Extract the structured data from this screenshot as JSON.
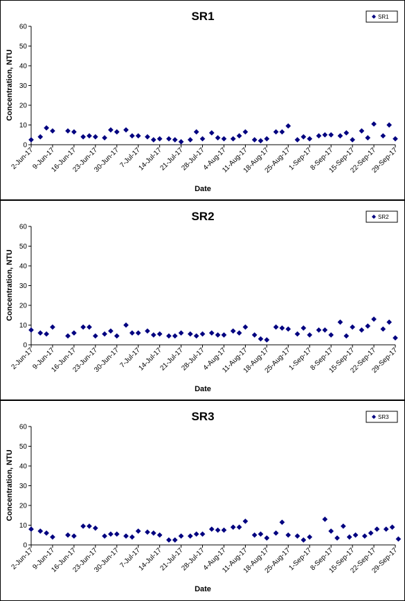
{
  "chart_data": [
    {
      "type": "scatter",
      "title": "SR1",
      "xlabel": "Date",
      "ylabel": "Concentration, NTU",
      "ylim": [
        0,
        60
      ],
      "yticks": [
        "0",
        "10",
        "20",
        "30",
        "40",
        "50",
        "60"
      ],
      "xlim": [
        "2017-06-02",
        "2017-09-29"
      ],
      "xticks": [
        "2-Jun-17",
        "9-Jun-17",
        "16-Jun-17",
        "23-Jun-17",
        "30-Jun-17",
        "7-Jul-17",
        "14-Jul-17",
        "21-Jul-17",
        "28-Jul-17",
        "4-Aug-17",
        "11-Aug-17",
        "18-Aug-17",
        "25-Aug-17",
        "1-Sep-17",
        "8-Sep-17",
        "15-Sep-17",
        "22-Sep-17",
        "29-Sep-17"
      ],
      "legend": "top-right",
      "grid": false,
      "marker_color": "#000080",
      "series": [
        {
          "name": "SR1",
          "points": [
            [
              "2017-06-02",
              2.5
            ],
            [
              "2017-06-05",
              4.0
            ],
            [
              "2017-06-07",
              8.5
            ],
            [
              "2017-06-09",
              7.0
            ],
            [
              "2017-06-14",
              7.0
            ],
            [
              "2017-06-16",
              6.5
            ],
            [
              "2017-06-19",
              4.0
            ],
            [
              "2017-06-21",
              4.5
            ],
            [
              "2017-06-23",
              4.0
            ],
            [
              "2017-06-26",
              3.5
            ],
            [
              "2017-06-28",
              7.5
            ],
            [
              "2017-06-30",
              6.5
            ],
            [
              "2017-07-03",
              7.5
            ],
            [
              "2017-07-05",
              4.5
            ],
            [
              "2017-07-07",
              4.5
            ],
            [
              "2017-07-10",
              4.0
            ],
            [
              "2017-07-12",
              2.5
            ],
            [
              "2017-07-14",
              3.0
            ],
            [
              "2017-07-17",
              3.0
            ],
            [
              "2017-07-19",
              2.5
            ],
            [
              "2017-07-21",
              1.5
            ],
            [
              "2017-07-24",
              2.5
            ],
            [
              "2017-07-26",
              6.5
            ],
            [
              "2017-07-28",
              3.0
            ],
            [
              "2017-07-31",
              6.0
            ],
            [
              "2017-08-02",
              3.5
            ],
            [
              "2017-08-04",
              3.0
            ],
            [
              "2017-08-07",
              3.0
            ],
            [
              "2017-08-09",
              4.5
            ],
            [
              "2017-08-11",
              6.5
            ],
            [
              "2017-08-14",
              2.5
            ],
            [
              "2017-08-16",
              2.0
            ],
            [
              "2017-08-18",
              3.0
            ],
            [
              "2017-08-21",
              6.5
            ],
            [
              "2017-08-23",
              6.5
            ],
            [
              "2017-08-25",
              9.5
            ],
            [
              "2017-08-28",
              2.5
            ],
            [
              "2017-08-30",
              4.0
            ],
            [
              "2017-09-01",
              3.0
            ],
            [
              "2017-09-04",
              4.5
            ],
            [
              "2017-09-06",
              5.0
            ],
            [
              "2017-09-08",
              5.0
            ],
            [
              "2017-09-11",
              4.5
            ],
            [
              "2017-09-13",
              6.0
            ],
            [
              "2017-09-15",
              2.5
            ],
            [
              "2017-09-18",
              7.0
            ],
            [
              "2017-09-20",
              3.5
            ],
            [
              "2017-09-22",
              10.5
            ],
            [
              "2017-09-25",
              4.5
            ],
            [
              "2017-09-27",
              10.0
            ],
            [
              "2017-09-29",
              3.0
            ]
          ]
        }
      ]
    },
    {
      "type": "scatter",
      "title": "SR2",
      "xlabel": "Date",
      "ylabel": "Concentration, NTU",
      "ylim": [
        0,
        60
      ],
      "yticks": [
        "0",
        "10",
        "20",
        "30",
        "40",
        "50",
        "60"
      ],
      "xlim": [
        "2017-06-02",
        "2017-09-29"
      ],
      "xticks": [
        "2-Jun-17",
        "9-Jun-17",
        "16-Jun-17",
        "23-Jun-17",
        "30-Jun-17",
        "7-Jul-17",
        "14-Jul-17",
        "21-Jul-17",
        "28-Jul-17",
        "4-Aug-17",
        "11-Aug-17",
        "18-Aug-17",
        "25-Aug-17",
        "1-Sep-17",
        "8-Sep-17",
        "15-Sep-17",
        "22-Sep-17",
        "29-Sep-17"
      ],
      "legend": "top-right",
      "grid": false,
      "marker_color": "#000080",
      "series": [
        {
          "name": "SR2",
          "points": [
            [
              "2017-06-02",
              7.5
            ],
            [
              "2017-06-05",
              6.0
            ],
            [
              "2017-06-07",
              5.5
            ],
            [
              "2017-06-09",
              9.0
            ],
            [
              "2017-06-14",
              4.5
            ],
            [
              "2017-06-16",
              6.0
            ],
            [
              "2017-06-19",
              9.0
            ],
            [
              "2017-06-21",
              9.0
            ],
            [
              "2017-06-23",
              4.5
            ],
            [
              "2017-06-26",
              5.5
            ],
            [
              "2017-06-28",
              7.0
            ],
            [
              "2017-06-30",
              4.5
            ],
            [
              "2017-07-03",
              10.0
            ],
            [
              "2017-07-05",
              6.0
            ],
            [
              "2017-07-07",
              6.0
            ],
            [
              "2017-07-10",
              7.0
            ],
            [
              "2017-07-12",
              5.0
            ],
            [
              "2017-07-14",
              5.5
            ],
            [
              "2017-07-17",
              4.5
            ],
            [
              "2017-07-19",
              4.5
            ],
            [
              "2017-07-21",
              6.0
            ],
            [
              "2017-07-24",
              5.5
            ],
            [
              "2017-07-26",
              4.5
            ],
            [
              "2017-07-28",
              5.5
            ],
            [
              "2017-07-31",
              6.0
            ],
            [
              "2017-08-02",
              5.0
            ],
            [
              "2017-08-04",
              5.0
            ],
            [
              "2017-08-07",
              7.0
            ],
            [
              "2017-08-09",
              6.0
            ],
            [
              "2017-08-11",
              9.0
            ],
            [
              "2017-08-14",
              5.0
            ],
            [
              "2017-08-16",
              3.0
            ],
            [
              "2017-08-18",
              2.5
            ],
            [
              "2017-08-21",
              9.0
            ],
            [
              "2017-08-23",
              8.5
            ],
            [
              "2017-08-25",
              8.0
            ],
            [
              "2017-08-28",
              5.5
            ],
            [
              "2017-08-30",
              8.5
            ],
            [
              "2017-09-01",
              5.0
            ],
            [
              "2017-09-04",
              7.5
            ],
            [
              "2017-09-06",
              7.5
            ],
            [
              "2017-09-08",
              5.0
            ],
            [
              "2017-09-11",
              11.5
            ],
            [
              "2017-09-13",
              4.5
            ],
            [
              "2017-09-15",
              9.0
            ],
            [
              "2017-09-18",
              7.5
            ],
            [
              "2017-09-20",
              9.5
            ],
            [
              "2017-09-22",
              13.0
            ],
            [
              "2017-09-25",
              8.0
            ],
            [
              "2017-09-27",
              11.5
            ],
            [
              "2017-09-29",
              3.5
            ]
          ]
        }
      ]
    },
    {
      "type": "scatter",
      "title": "SR3",
      "xlabel": "Date",
      "ylabel": "Concentration, NTU",
      "ylim": [
        0,
        60
      ],
      "yticks": [
        "0",
        "10",
        "20",
        "30",
        "40",
        "50",
        "60"
      ],
      "xlim": [
        "2017-06-02",
        "2017-09-29"
      ],
      "xticks": [
        "2-Jun-17",
        "9-Jun-17",
        "16-Jun-17",
        "23-Jun-17",
        "30-Jun-17",
        "7-Jul-17",
        "14-Jul-17",
        "21-Jul-17",
        "28-Jul-17",
        "4-Aug-17",
        "11-Aug-17",
        "18-Aug-17",
        "25-Aug-17",
        "1-Sep-17",
        "8-Sep-17",
        "15-Sep-17",
        "22-Sep-17",
        "29-Sep-17"
      ],
      "legend": "top-right",
      "grid": false,
      "marker_color": "#000080",
      "series": [
        {
          "name": "SR3",
          "points": [
            [
              "2017-06-02",
              8.0
            ],
            [
              "2017-06-05",
              7.0
            ],
            [
              "2017-06-07",
              6.0
            ],
            [
              "2017-06-09",
              4.0
            ],
            [
              "2017-06-14",
              5.0
            ],
            [
              "2017-06-16",
              4.5
            ],
            [
              "2017-06-19",
              9.5
            ],
            [
              "2017-06-21",
              9.5
            ],
            [
              "2017-06-23",
              8.5
            ],
            [
              "2017-06-26",
              4.5
            ],
            [
              "2017-06-28",
              5.5
            ],
            [
              "2017-06-30",
              5.5
            ],
            [
              "2017-07-03",
              4.5
            ],
            [
              "2017-07-05",
              4.0
            ],
            [
              "2017-07-07",
              7.0
            ],
            [
              "2017-07-10",
              6.5
            ],
            [
              "2017-07-12",
              6.0
            ],
            [
              "2017-07-14",
              5.0
            ],
            [
              "2017-07-17",
              2.5
            ],
            [
              "2017-07-19",
              2.5
            ],
            [
              "2017-07-21",
              4.5
            ],
            [
              "2017-07-24",
              4.5
            ],
            [
              "2017-07-26",
              5.5
            ],
            [
              "2017-07-28",
              5.5
            ],
            [
              "2017-07-31",
              8.0
            ],
            [
              "2017-08-02",
              7.5
            ],
            [
              "2017-08-04",
              7.5
            ],
            [
              "2017-08-07",
              9.0
            ],
            [
              "2017-08-09",
              9.0
            ],
            [
              "2017-08-11",
              12.0
            ],
            [
              "2017-08-14",
              5.0
            ],
            [
              "2017-08-16",
              5.5
            ],
            [
              "2017-08-18",
              3.5
            ],
            [
              "2017-08-21",
              6.0
            ],
            [
              "2017-08-23",
              11.5
            ],
            [
              "2017-08-25",
              5.0
            ],
            [
              "2017-08-28",
              4.5
            ],
            [
              "2017-08-30",
              2.5
            ],
            [
              "2017-09-01",
              4.0
            ],
            [
              "2017-09-06",
              13.0
            ],
            [
              "2017-09-08",
              7.0
            ],
            [
              "2017-09-10",
              3.5
            ],
            [
              "2017-09-12",
              9.5
            ],
            [
              "2017-09-14",
              4.0
            ],
            [
              "2017-09-16",
              5.0
            ],
            [
              "2017-09-19",
              4.5
            ],
            [
              "2017-09-21",
              6.0
            ],
            [
              "2017-09-23",
              8.0
            ],
            [
              "2017-09-26",
              8.0
            ],
            [
              "2017-09-28",
              9.0
            ],
            [
              "2017-09-30",
              3.0
            ]
          ]
        }
      ]
    }
  ]
}
